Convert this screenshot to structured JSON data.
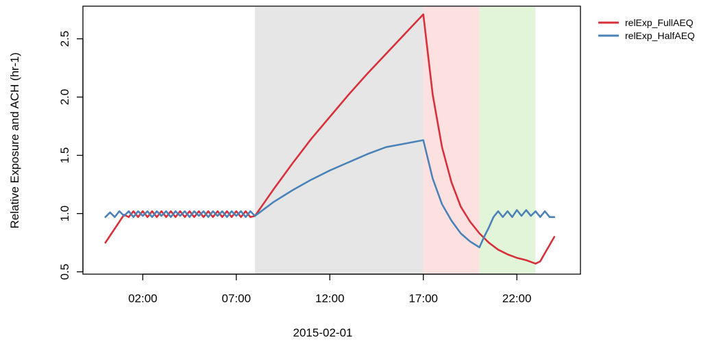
{
  "chart_data": {
    "type": "line",
    "title": "",
    "xlabel": "2015-02-01",
    "ylabel": "Relative Exposure and ACH (hr-1)",
    "xlim": [
      -1.2,
      25.4
    ],
    "ylim": [
      0.48,
      2.78
    ],
    "grid": false,
    "legend_position": "top-right (outside plot)",
    "x_ticks": [
      {
        "x": 2,
        "label": "02:00"
      },
      {
        "x": 7,
        "label": "07:00"
      },
      {
        "x": 12,
        "label": "12:00"
      },
      {
        "x": 17,
        "label": "17:00"
      },
      {
        "x": 22,
        "label": "22:00"
      }
    ],
    "y_ticks": [
      {
        "y": 0.5,
        "label": "0.5"
      },
      {
        "y": 1.0,
        "label": "1.0"
      },
      {
        "y": 1.5,
        "label": "1.5"
      },
      {
        "y": 2.0,
        "label": "2.0"
      },
      {
        "y": 2.5,
        "label": "2.5"
      }
    ],
    "shaded_regions": [
      {
        "x_start": 8,
        "x_end": 17,
        "color": "#e6e6e6"
      },
      {
        "x_start": 17,
        "x_end": 20,
        "color": "#fde0e0"
      },
      {
        "x_start": 20,
        "x_end": 23,
        "color": "#e3f5d8"
      }
    ],
    "series": [
      {
        "name": "relExp_FullAEQ",
        "color": "#d7303a",
        "x": [
          0,
          0.25,
          0.5,
          0.75,
          1,
          1.25,
          1.5,
          1.75,
          2,
          2.25,
          2.5,
          2.75,
          3,
          3.25,
          3.5,
          3.75,
          4,
          4.25,
          4.5,
          4.75,
          5,
          5.25,
          5.5,
          5.75,
          6,
          6.25,
          6.5,
          6.75,
          7,
          7.25,
          7.5,
          7.75,
          8,
          9,
          10,
          11,
          12,
          13,
          14,
          15,
          16,
          17,
          17.5,
          18,
          18.5,
          19,
          19.5,
          20,
          20.5,
          21,
          21.5,
          22,
          22.5,
          23,
          23.25,
          23.5,
          23.75,
          24
        ],
        "y": [
          0.75,
          0.81,
          0.87,
          0.93,
          0.99,
          0.97,
          1.02,
          0.97,
          1.02,
          0.97,
          1.02,
          0.97,
          1.02,
          0.97,
          1.02,
          0.97,
          1.02,
          0.97,
          1.02,
          0.97,
          1.02,
          0.97,
          1.02,
          0.97,
          1.02,
          0.97,
          1.02,
          0.97,
          1.02,
          0.97,
          1.02,
          0.97,
          0.98,
          1.21,
          1.43,
          1.64,
          1.83,
          2.02,
          2.2,
          2.37,
          2.54,
          2.71,
          2.02,
          1.57,
          1.27,
          1.06,
          0.93,
          0.83,
          0.75,
          0.69,
          0.65,
          0.62,
          0.6,
          0.57,
          0.59,
          0.66,
          0.73,
          0.8
        ]
      },
      {
        "name": "relExp_HalfAEQ",
        "color": "#4b82b8",
        "x": [
          0,
          0.25,
          0.5,
          0.75,
          1,
          1.25,
          1.5,
          1.75,
          2,
          2.25,
          2.5,
          2.75,
          3,
          3.25,
          3.5,
          3.75,
          4,
          4.25,
          4.5,
          4.75,
          5,
          5.25,
          5.5,
          5.75,
          6,
          6.25,
          6.5,
          6.75,
          7,
          7.25,
          7.5,
          7.75,
          8,
          9,
          10,
          11,
          12,
          13,
          14,
          15,
          16,
          17,
          17.5,
          18,
          18.5,
          19,
          19.5,
          20,
          20.25,
          20.5,
          20.75,
          21,
          21.25,
          21.5,
          21.75,
          22,
          22.25,
          22.5,
          22.75,
          23,
          23.25,
          23.5,
          23.75,
          24
        ],
        "y": [
          0.97,
          1.01,
          0.97,
          1.02,
          0.98,
          1.02,
          0.97,
          1.02,
          0.98,
          1.02,
          0.97,
          1.02,
          0.98,
          1.02,
          0.97,
          1.02,
          0.98,
          1.02,
          0.97,
          1.02,
          0.98,
          1.02,
          0.97,
          1.02,
          0.98,
          1.02,
          0.97,
          1.02,
          0.98,
          1.02,
          0.97,
          1.02,
          0.98,
          1.1,
          1.2,
          1.29,
          1.37,
          1.44,
          1.51,
          1.57,
          1.6,
          1.63,
          1.3,
          1.08,
          0.94,
          0.83,
          0.76,
          0.71,
          0.8,
          0.88,
          0.97,
          1.02,
          0.97,
          1.02,
          0.97,
          1.03,
          0.98,
          1.03,
          0.98,
          1.02,
          0.97,
          1.02,
          0.97,
          0.97
        ]
      }
    ]
  }
}
